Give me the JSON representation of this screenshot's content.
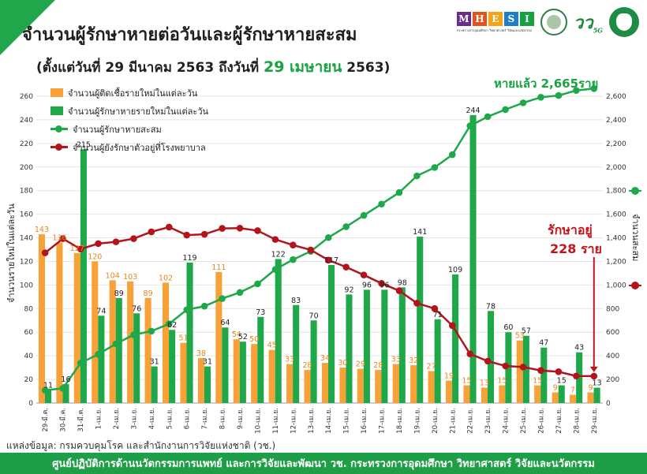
{
  "header": {
    "title": "จำนวนผู้รักษาหายต่อวันและผู้รักษาหายสะสม",
    "subtitle_prefix": "(ตั้งแต่วันที่ 29 มีนาคม 2563 ถึงวันที่ ",
    "subtitle_highlight": "29 เมษายน",
    "subtitle_suffix": " 2563)"
  },
  "logos": {
    "mhesi_letters": [
      "M",
      "H",
      "E",
      "S",
      "I"
    ],
    "mhesi_colors": [
      "#6a2b8a",
      "#e2541b",
      "#f2a413",
      "#1e7fc2",
      "#16a140"
    ],
    "mhesi_subtitle": "กระทรวงการอุดมศึกษา วิทยาศาสตร์ วิจัยและนวัตกรรม",
    "vor_text": "วว",
    "vor_sub": "5G"
  },
  "chart_data": {
    "type": "bar",
    "categories": [
      "29-มี.ค.",
      "30-มี.ค.",
      "31-มี.ค.",
      "1-เม.ย.",
      "2-เม.ย.",
      "3-เม.ย.",
      "4-เม.ย.",
      "5-เม.ย.",
      "6-เม.ย.",
      "7-เม.ย.",
      "8-เม.ย.",
      "9-เม.ย.",
      "10-เม.ย.",
      "11-เม.ย.",
      "12-เม.ย.",
      "13-เม.ย.",
      "14-เม.ย.",
      "15-เม.ย.",
      "16-เม.ย.",
      "17-เม.ย.",
      "18-เม.ย.",
      "19-เม.ย.",
      "20-เม.ย.",
      "21-เม.ย.",
      "22-เม.ย.",
      "23-เม.ย.",
      "24-เม.ย.",
      "25-เม.ย.",
      "26-เม.ย.",
      "27-เม.ย.",
      "28-เม.ย.",
      "29-เม.ย."
    ],
    "series": [
      {
        "name": "จำนวนผู้ติดเชื้อรายใหม่ในแต่ละวัน",
        "type": "bar",
        "axis": "left",
        "color": "#f7a136",
        "values": [
          143,
          136,
          127,
          120,
          104,
          103,
          89,
          102,
          51,
          38,
          111,
          54,
          50,
          45,
          33,
          28,
          34,
          30,
          29,
          28,
          33,
          32,
          27,
          19,
          15,
          13,
          15,
          53,
          15,
          9,
          7,
          9
        ]
      },
      {
        "name": "จำนวนผู้รักษาหายรายใหม่ในแต่ละวัน",
        "type": "bar",
        "axis": "left",
        "color": "#1fa84a",
        "values": [
          11,
          16,
          215,
          74,
          89,
          76,
          31,
          62,
          119,
          31,
          64,
          52,
          73,
          122,
          83,
          70,
          117,
          92,
          96,
          96,
          98,
          141,
          71,
          109,
          244,
          78,
          60,
          57,
          47,
          15,
          43,
          13
        ]
      },
      {
        "name": "จำนวนผู้รักษาหายสะสม",
        "type": "line",
        "axis": "right",
        "color": "#1fa84a",
        "values": [
          108,
          124,
          339,
          413,
          502,
          578,
          609,
          671,
          790,
          821,
          885,
          937,
          1010,
          1132,
          1215,
          1285,
          1402,
          1494,
          1590,
          1686,
          1784,
          1925,
          1996,
          2105,
          2349,
          2427,
          2487,
          2544,
          2591,
          2606,
          2649,
          2665
        ]
      },
      {
        "name": "จำนวนผู้ยังรักษาตัวอยู่ที่โรงพยาบาล",
        "type": "line",
        "axis": "right",
        "color": "#b3141b",
        "values": [
          1273,
          1393,
          1305,
          1351,
          1366,
          1393,
          1451,
          1491,
          1423,
          1430,
          1480,
          1482,
          1461,
          1386,
          1339,
          1297,
          1211,
          1152,
          1085,
          1014,
          952,
          846,
          801,
          656,
          416,
          355,
          314,
          305,
          276,
          265,
          229,
          228
        ]
      }
    ],
    "y_left": {
      "min": 0,
      "max": 260,
      "step": 20,
      "label": "จำนวนรายใหม่ในแต่ละวัน"
    },
    "y_right": {
      "min": 0,
      "max": 2600,
      "step": 200,
      "label": "จำนวนสะสม"
    },
    "grid": true,
    "legend": "top-left",
    "annotations": {
      "recovered_total": "หายแล้ว 2,665ราย",
      "hospital_line1": "รักษาอยู่",
      "hospital_line2": "228 ราย"
    }
  },
  "source": "แหล่งข้อมูล: กรมควบคุมโรค และสำนักงานการวิจัยแห่งชาติ (วช.)",
  "footer": "ศูนย์ปฏิบัติการด้านนวัตกรรมการแพทย์ และการวิจัยและพัฒนา   วช.   กระทรวงการอุดมศึกษา วิทยาศาสตร์ วิจัยและนวัตกรรม"
}
